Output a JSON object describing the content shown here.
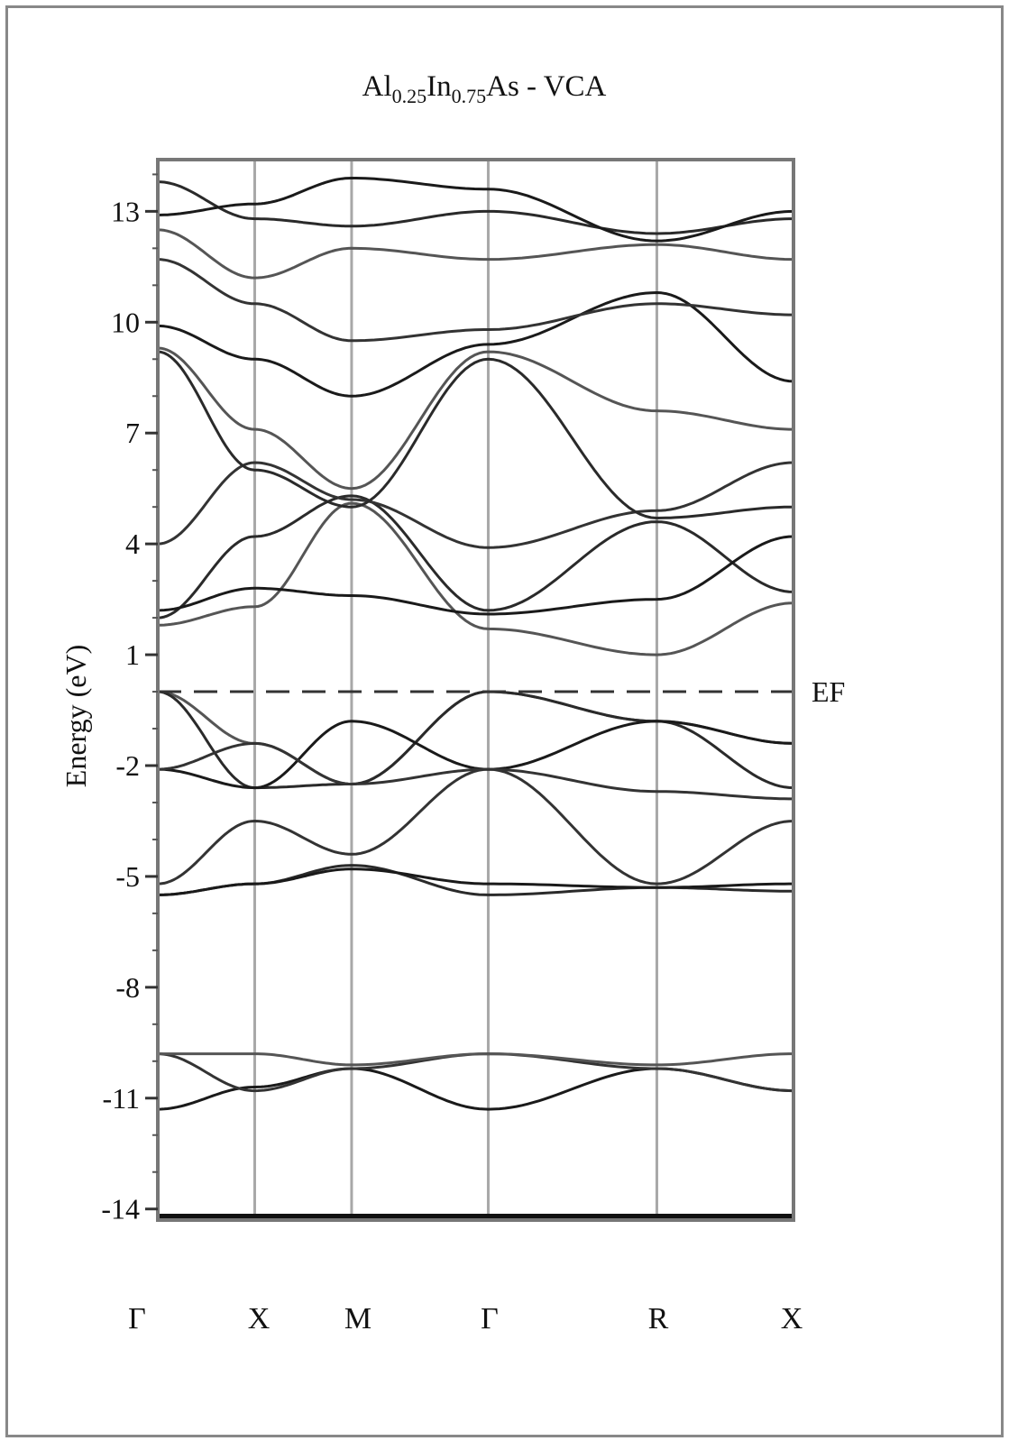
{
  "chart_data": {
    "type": "line",
    "title": {
      "parts": [
        {
          "text": "Al",
          "sub": false
        },
        {
          "text": "0.25",
          "sub": true
        },
        {
          "text": "In",
          "sub": false
        },
        {
          "text": "0.75",
          "sub": true
        },
        {
          "text": "As - VCA",
          "sub": false
        }
      ]
    },
    "ylabel": "Energy (eV)",
    "xlabel": "",
    "ylim": [
      -14.3,
      14.4
    ],
    "yticks": [
      13,
      10,
      7,
      4,
      1,
      -2,
      -5,
      -8,
      -11,
      -14
    ],
    "minor_tick_step": 1,
    "kpoints": [
      {
        "label": "Γ",
        "x": 0.0
      },
      {
        "label": "X",
        "x": 1.0
      },
      {
        "label": "M",
        "x": 2.0
      },
      {
        "label": "Γ",
        "x": 3.41
      },
      {
        "label": "R",
        "x": 5.15
      },
      {
        "label": "X",
        "x": 6.56
      }
    ],
    "fermi": {
      "label": "EF",
      "energy": 0.0
    },
    "bands": [
      {
        "name": "",
        "x": [
          0,
          1,
          2,
          3.41,
          5.15,
          6.56
        ],
        "y": [
          -11.3,
          -10.7,
          -10.2,
          -11.3,
          -10.2,
          -10.8
        ]
      },
      {
        "name": "",
        "x": [
          0,
          1,
          2,
          3.41,
          5.15,
          6.56
        ],
        "y": [
          -9.8,
          -10.8,
          -10.2,
          -9.8,
          -10.2,
          -10.8
        ]
      },
      {
        "name": "",
        "x": [
          0,
          1,
          2,
          3.41,
          5.15,
          6.56
        ],
        "y": [
          -9.8,
          -9.8,
          -10.1,
          -9.8,
          -10.1,
          -9.8
        ]
      },
      {
        "name": "",
        "x": [
          0,
          1,
          2,
          3.41,
          5.15,
          6.56
        ],
        "y": [
          -5.5,
          -5.2,
          -4.7,
          -5.5,
          -5.3,
          -5.4
        ]
      },
      {
        "name": "",
        "x": [
          0,
          1,
          2,
          3.41,
          5.15,
          6.56
        ],
        "y": [
          -5.5,
          -5.2,
          -4.8,
          -5.2,
          -5.3,
          -5.2
        ]
      },
      {
        "name": "",
        "x": [
          0,
          1,
          2,
          3.41,
          5.15,
          6.56
        ],
        "y": [
          -5.2,
          -3.5,
          -4.4,
          -2.1,
          -5.2,
          -3.5
        ]
      },
      {
        "name": "",
        "x": [
          0,
          1,
          2,
          3.41,
          5.15,
          6.56
        ],
        "y": [
          0.0,
          -1.4,
          -2.5,
          0.0,
          -0.8,
          -1.4
        ]
      },
      {
        "name": "",
        "x": [
          0,
          1,
          2,
          3.41,
          5.15,
          6.56
        ],
        "y": [
          0.0,
          -2.6,
          -2.5,
          0.0,
          -0.8,
          -2.6
        ]
      },
      {
        "name": "",
        "x": [
          0,
          1,
          2,
          3.41,
          5.15,
          6.56
        ],
        "y": [
          -2.1,
          -2.6,
          -0.8,
          -2.1,
          -0.8,
          -1.4
        ]
      },
      {
        "name": "",
        "x": [
          0,
          1,
          2,
          3.41,
          5.15,
          6.56
        ],
        "y": [
          -2.1,
          -1.4,
          -2.5,
          -2.1,
          -2.7,
          -2.9
        ]
      },
      {
        "name": "",
        "x": [
          0,
          1,
          2,
          3.41,
          5.15,
          6.56
        ],
        "y": [
          1.8,
          2.3,
          5.1,
          1.7,
          1.0,
          2.4
        ]
      },
      {
        "name": "",
        "x": [
          0,
          1,
          2,
          3.41,
          5.15,
          6.56
        ],
        "y": [
          2.0,
          4.2,
          5.3,
          2.2,
          4.6,
          2.7
        ]
      },
      {
        "name": "",
        "x": [
          0,
          1,
          2,
          3.41,
          5.15,
          6.56
        ],
        "y": [
          2.2,
          2.8,
          2.6,
          2.1,
          2.5,
          4.2
        ]
      },
      {
        "name": "",
        "x": [
          0,
          1,
          2,
          3.41,
          5.15,
          6.56
        ],
        "y": [
          4.0,
          6.2,
          5.2,
          3.9,
          4.9,
          6.2
        ]
      },
      {
        "name": "",
        "x": [
          0,
          1,
          2,
          3.41,
          5.15,
          6.56
        ],
        "y": [
          9.3,
          7.1,
          5.5,
          9.2,
          7.6,
          7.1
        ]
      },
      {
        "name": "",
        "x": [
          0,
          1,
          2,
          3.41,
          5.15,
          6.56
        ],
        "y": [
          9.2,
          6.0,
          5.0,
          9.0,
          4.7,
          5.0
        ]
      },
      {
        "name": "",
        "x": [
          0,
          1,
          2,
          3.41,
          5.15,
          6.56
        ],
        "y": [
          9.9,
          9.0,
          8.0,
          9.4,
          10.8,
          8.4
        ]
      },
      {
        "name": "",
        "x": [
          0,
          1,
          2,
          3.41,
          5.15,
          6.56
        ],
        "y": [
          11.7,
          10.5,
          9.5,
          9.8,
          10.5,
          10.2
        ]
      },
      {
        "name": "",
        "x": [
          0,
          1,
          2,
          3.41,
          5.15,
          6.56
        ],
        "y": [
          12.5,
          11.2,
          12.0,
          11.7,
          12.1,
          11.7
        ]
      },
      {
        "name": "",
        "x": [
          0,
          1,
          2,
          3.41,
          5.15,
          6.56
        ],
        "y": [
          13.8,
          12.8,
          12.6,
          13.0,
          12.4,
          12.8
        ]
      },
      {
        "name": "",
        "x": [
          0,
          1,
          2,
          3.41,
          5.15,
          6.56
        ],
        "y": [
          12.9,
          13.2,
          13.9,
          13.6,
          12.2,
          13.0
        ]
      }
    ]
  }
}
